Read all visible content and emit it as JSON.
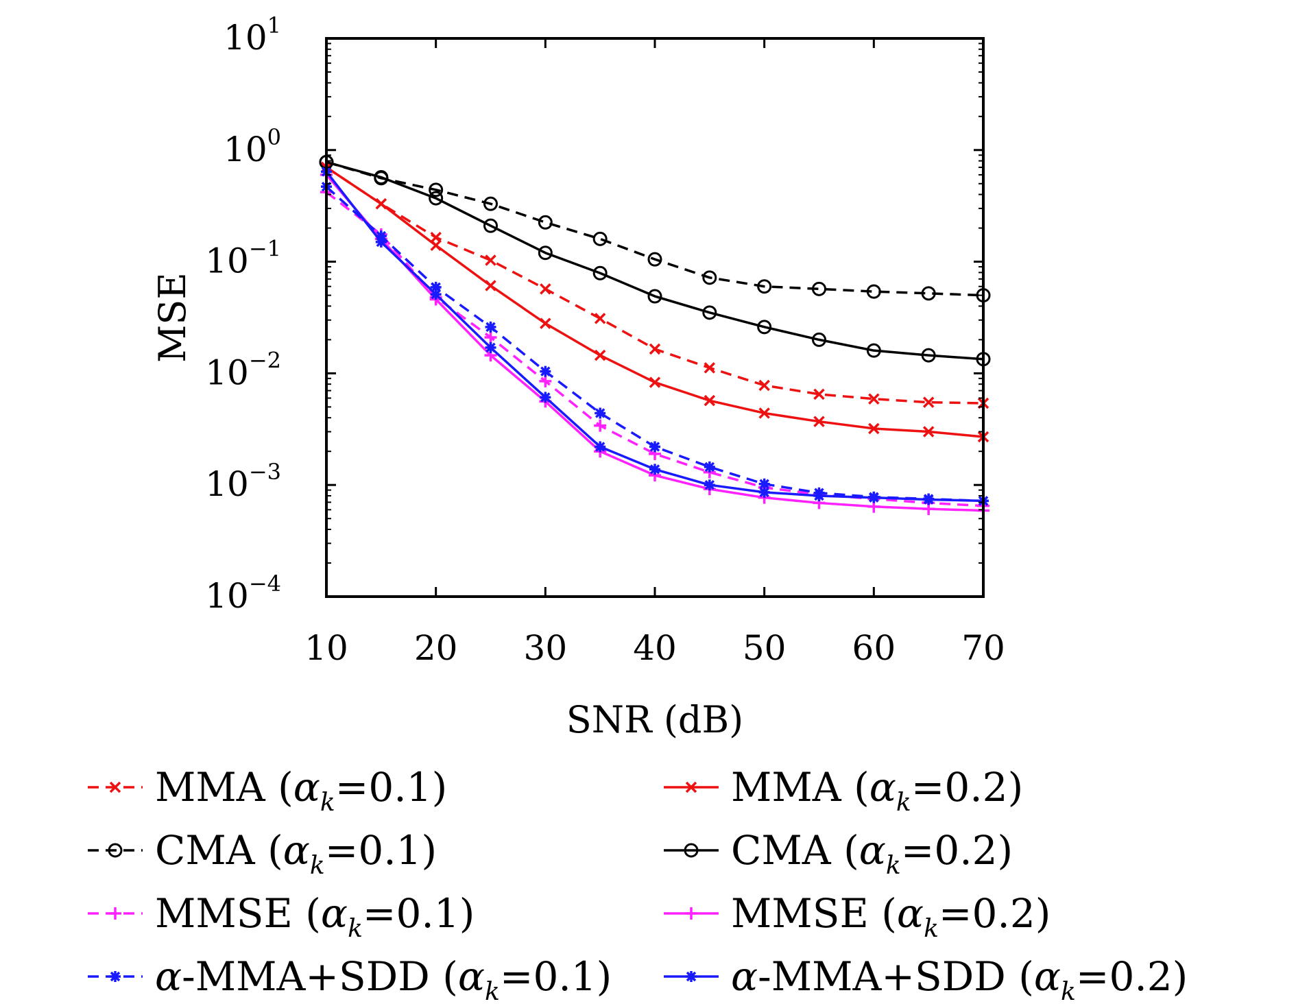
{
  "chart_data": {
    "type": "line",
    "title": "",
    "xlabel": "SNR (dB)",
    "ylabel": "MSE",
    "xlim": [
      10,
      70
    ],
    "ylim": [
      0.0001,
      10
    ],
    "yscale": "log",
    "grid": false,
    "x_ticks": [
      "10",
      "20",
      "30",
      "40",
      "50",
      "60",
      "70"
    ],
    "y_ticks": [
      {
        "base": "10",
        "exp": "1",
        "value": 10
      },
      {
        "base": "10",
        "exp": "0",
        "value": 1
      },
      {
        "base": "10",
        "exp": "−1",
        "value": 0.1
      },
      {
        "base": "10",
        "exp": "−2",
        "value": 0.01
      },
      {
        "base": "10",
        "exp": "−3",
        "value": 0.001
      },
      {
        "base": "10",
        "exp": "−4",
        "value": 0.0001
      }
    ],
    "x": [
      10,
      15,
      20,
      25,
      30,
      35,
      40,
      45,
      50,
      55,
      60,
      65,
      70
    ],
    "legend_position": "below",
    "series": [
      {
        "name": "MMA (α_k=0.1)",
        "method": "MMA",
        "alpha": "0.1",
        "prefix": "",
        "color": "#ee1111",
        "dash": true,
        "marker": "x",
        "values": [
          0.7,
          0.33,
          0.165,
          0.103,
          0.057,
          0.031,
          0.0165,
          0.0112,
          0.0078,
          0.0065,
          0.0059,
          0.0055,
          0.0054
        ]
      },
      {
        "name": "MMA (α_k=0.2)",
        "method": "MMA",
        "alpha": "0.2",
        "prefix": "",
        "color": "#ee1111",
        "dash": false,
        "marker": "x",
        "values": [
          0.7,
          0.33,
          0.14,
          0.061,
          0.028,
          0.0145,
          0.0083,
          0.0057,
          0.0044,
          0.0037,
          0.0032,
          0.003,
          0.0027
        ]
      },
      {
        "name": "CMA (α_k=0.1)",
        "method": "CMA",
        "alpha": "0.1",
        "prefix": "",
        "color": "#000000",
        "dash": true,
        "marker": "o",
        "values": [
          0.78,
          0.56,
          0.44,
          0.33,
          0.225,
          0.16,
          0.105,
          0.072,
          0.06,
          0.057,
          0.054,
          0.052,
          0.05
        ]
      },
      {
        "name": "CMA (α_k=0.2)",
        "method": "CMA",
        "alpha": "0.2",
        "prefix": "",
        "color": "#000000",
        "dash": false,
        "marker": "o",
        "values": [
          0.78,
          0.57,
          0.37,
          0.21,
          0.12,
          0.079,
          0.049,
          0.035,
          0.026,
          0.02,
          0.016,
          0.0145,
          0.0134
        ]
      },
      {
        "name": "MMSE (α_k=0.1)",
        "method": "MMSE",
        "alpha": "0.1",
        "prefix": "",
        "color": "#ff22ff",
        "dash": true,
        "marker": "+",
        "values": [
          0.42,
          0.175,
          0.048,
          0.021,
          0.0085,
          0.0034,
          0.0019,
          0.0013,
          0.00095,
          0.00082,
          0.00075,
          0.00069,
          0.00065
        ]
      },
      {
        "name": "MMSE (α_k=0.2)",
        "method": "MMSE",
        "alpha": "0.2",
        "prefix": "",
        "color": "#ff22ff",
        "dash": false,
        "marker": "+",
        "values": [
          0.6,
          0.16,
          0.046,
          0.0145,
          0.0056,
          0.002,
          0.00122,
          0.00092,
          0.00077,
          0.00069,
          0.00064,
          0.00061,
          0.00059
        ]
      },
      {
        "name": "α-MMA+SDD (α_k=0.1)",
        "method": "-MMA+SDD",
        "alpha": "0.1",
        "prefix": "α",
        "color": "#1a1aff",
        "dash": true,
        "marker": "*",
        "values": [
          0.47,
          0.17,
          0.059,
          0.026,
          0.0104,
          0.0044,
          0.0022,
          0.00145,
          0.00102,
          0.00085,
          0.00078,
          0.00075,
          0.00072
        ]
      },
      {
        "name": "α-MMA+SDD (α_k=0.2)",
        "method": "-MMA+SDD",
        "alpha": "0.2",
        "prefix": "α",
        "color": "#1a1aff",
        "dash": false,
        "marker": "*",
        "values": [
          0.64,
          0.15,
          0.051,
          0.017,
          0.0061,
          0.0022,
          0.00138,
          0.001,
          0.00086,
          0.0008,
          0.00077,
          0.00074,
          0.00072
        ]
      }
    ]
  }
}
